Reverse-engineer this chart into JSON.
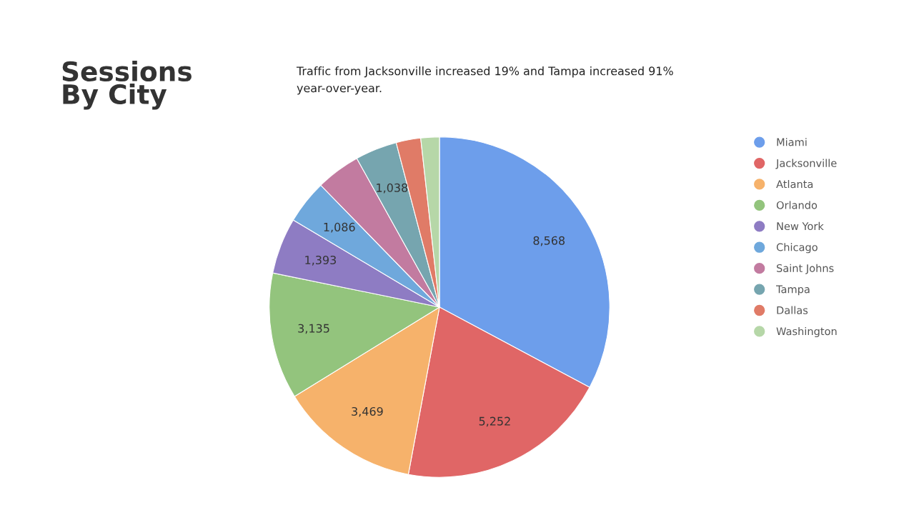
{
  "chart_data": {
    "type": "pie",
    "title": "Sessions\nBy City",
    "subtitle": "Traffic from Jacksonville increased 19% and Tampa increased 91%\nyear-over-year.",
    "categories": [
      "Miami",
      "Jacksonville",
      "Atlanta",
      "Orlando",
      "New York",
      "Chicago",
      "Saint Johns",
      "Tampa",
      "Dallas",
      "Washington"
    ],
    "values": [
      8568,
      5252,
      3469,
      3135,
      1393,
      1086,
      1100,
      1038,
      610,
      460
    ],
    "value_labels": [
      "8,568",
      "5,252",
      "3,469",
      "3,135",
      "1,393",
      "1,086",
      null,
      "1,038",
      null,
      null
    ],
    "colors": [
      "#6d9eeb",
      "#e06666",
      "#f6b26b",
      "#93c47d",
      "#8e7cc3",
      "#6fa8dc",
      "#c27ba0",
      "#76a5af",
      "#e07b67",
      "#b6d7a8"
    ],
    "legend": "right"
  }
}
